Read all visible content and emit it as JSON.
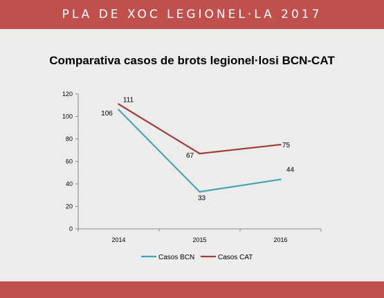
{
  "header": {
    "title": "PLA DE XOC LEGIONEL·LA 2017"
  },
  "chart_data": {
    "type": "line",
    "title": "Comparativa casos de brots legionel·losi BCN-CAT",
    "xlabel": "",
    "ylabel": "",
    "categories": [
      "2014",
      "2015",
      "2016"
    ],
    "ylim": [
      0,
      120
    ],
    "yticks": [
      0,
      20,
      40,
      60,
      80,
      100,
      120
    ],
    "grid": false,
    "legend_position": "bottom",
    "series": [
      {
        "name": "Casos BCN",
        "values": [
          106,
          33,
          44
        ],
        "color": "#4aa3b5"
      },
      {
        "name": "Casos CAT",
        "values": [
          111,
          67,
          75
        ],
        "color": "#a0403c"
      }
    ]
  }
}
